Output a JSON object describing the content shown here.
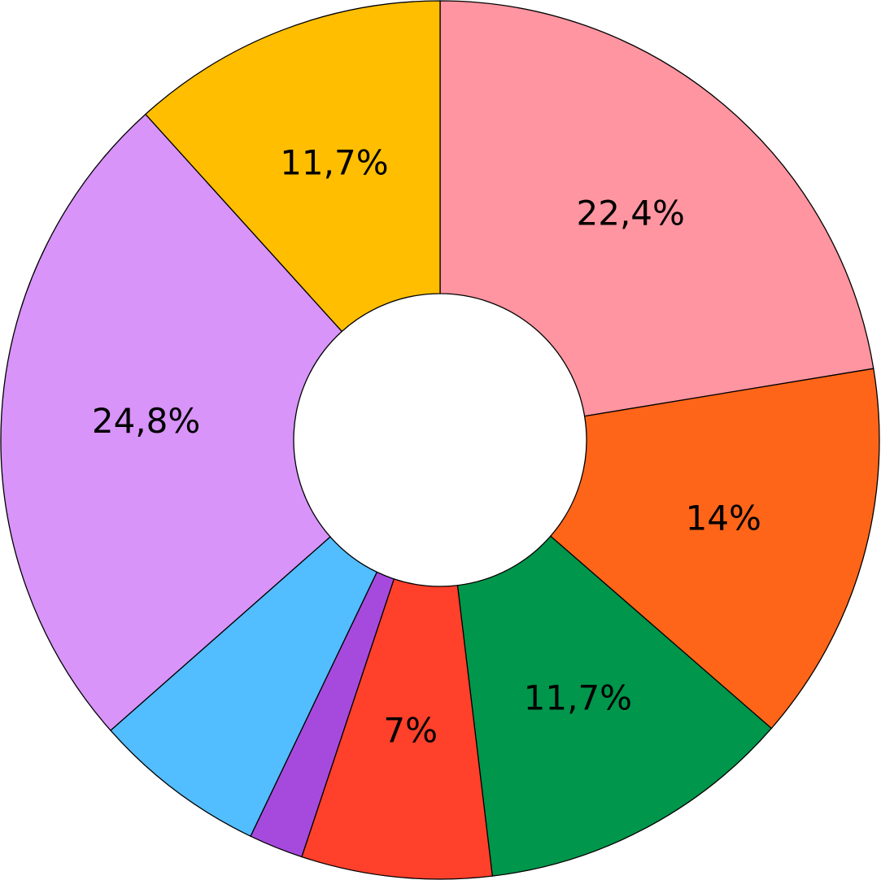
{
  "chart_data": {
    "type": "donut",
    "values": [
      22.4,
      14,
      11.7,
      7,
      2,
      6.4,
      24.8,
      11.7
    ],
    "value_labels": [
      "22,4%",
      "14%",
      "11,7%",
      "7%",
      null,
      null,
      "24,8%",
      "11,7%"
    ],
    "colors": [
      "#ff95a0",
      "#ff6519",
      "#00964b",
      "#ff402b",
      "#a64add",
      "#52bdff",
      "#d894f9",
      "#ffbe00"
    ]
  }
}
